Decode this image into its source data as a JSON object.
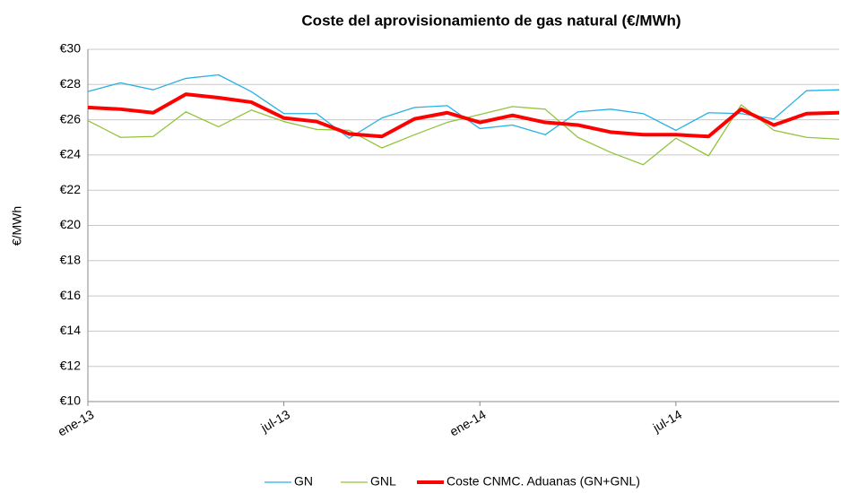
{
  "chart_data": {
    "type": "line",
    "title": "Coste del aprovisionamiento de gas natural (€/MWh)",
    "y_label": "€/MWh",
    "categories": [
      "ene-13",
      null,
      null,
      null,
      null,
      null,
      "jul-13",
      null,
      null,
      null,
      null,
      null,
      "ene-14",
      null,
      null,
      null,
      null,
      null,
      "jul-14",
      null,
      null,
      null,
      null,
      null
    ],
    "series": [
      {
        "name": "GN",
        "color": "#27b1e6",
        "width": 1.3,
        "values": [
          27.6,
          28.1,
          27.7,
          28.35,
          28.55,
          27.6,
          26.35,
          26.35,
          24.95,
          26.1,
          26.7,
          26.8,
          25.5,
          25.7,
          25.15,
          26.45,
          26.6,
          26.35,
          25.4,
          26.4,
          26.35,
          26.05,
          27.65,
          27.7
        ]
      },
      {
        "name": "GNL",
        "color": "#92c43a",
        "width": 1.3,
        "values": [
          25.95,
          25.0,
          25.05,
          26.45,
          25.6,
          26.55,
          25.9,
          25.45,
          25.4,
          24.4,
          25.15,
          25.85,
          26.3,
          26.75,
          26.6,
          25.0,
          24.15,
          23.45,
          24.95,
          23.95,
          26.85,
          25.4,
          25.0,
          24.9
        ]
      },
      {
        "name": "Coste CNMC. Aduanas (GN+GNL)",
        "color": "#ff0000",
        "width": 4,
        "values": [
          26.7,
          26.6,
          26.4,
          27.45,
          27.25,
          27.0,
          26.1,
          25.9,
          25.2,
          25.05,
          26.05,
          26.4,
          25.85,
          26.25,
          25.85,
          25.7,
          25.3,
          25.15,
          25.15,
          25.05,
          26.6,
          25.7,
          26.35,
          26.4
        ]
      }
    ],
    "ylim": [
      10,
      30
    ],
    "yticks": [
      {
        "value": 10,
        "label": "€10"
      },
      {
        "value": 12,
        "label": "€12"
      },
      {
        "value": 14,
        "label": "€14"
      },
      {
        "value": 16,
        "label": "€16"
      },
      {
        "value": 18,
        "label": "€18"
      },
      {
        "value": 20,
        "label": "€20"
      },
      {
        "value": 22,
        "label": "€22"
      },
      {
        "value": 24,
        "label": "€24"
      },
      {
        "value": 26,
        "label": "€26"
      },
      {
        "value": 28,
        "label": "€28"
      },
      {
        "value": 30,
        "label": "€30"
      }
    ],
    "grid": true,
    "legend": "bottom"
  }
}
